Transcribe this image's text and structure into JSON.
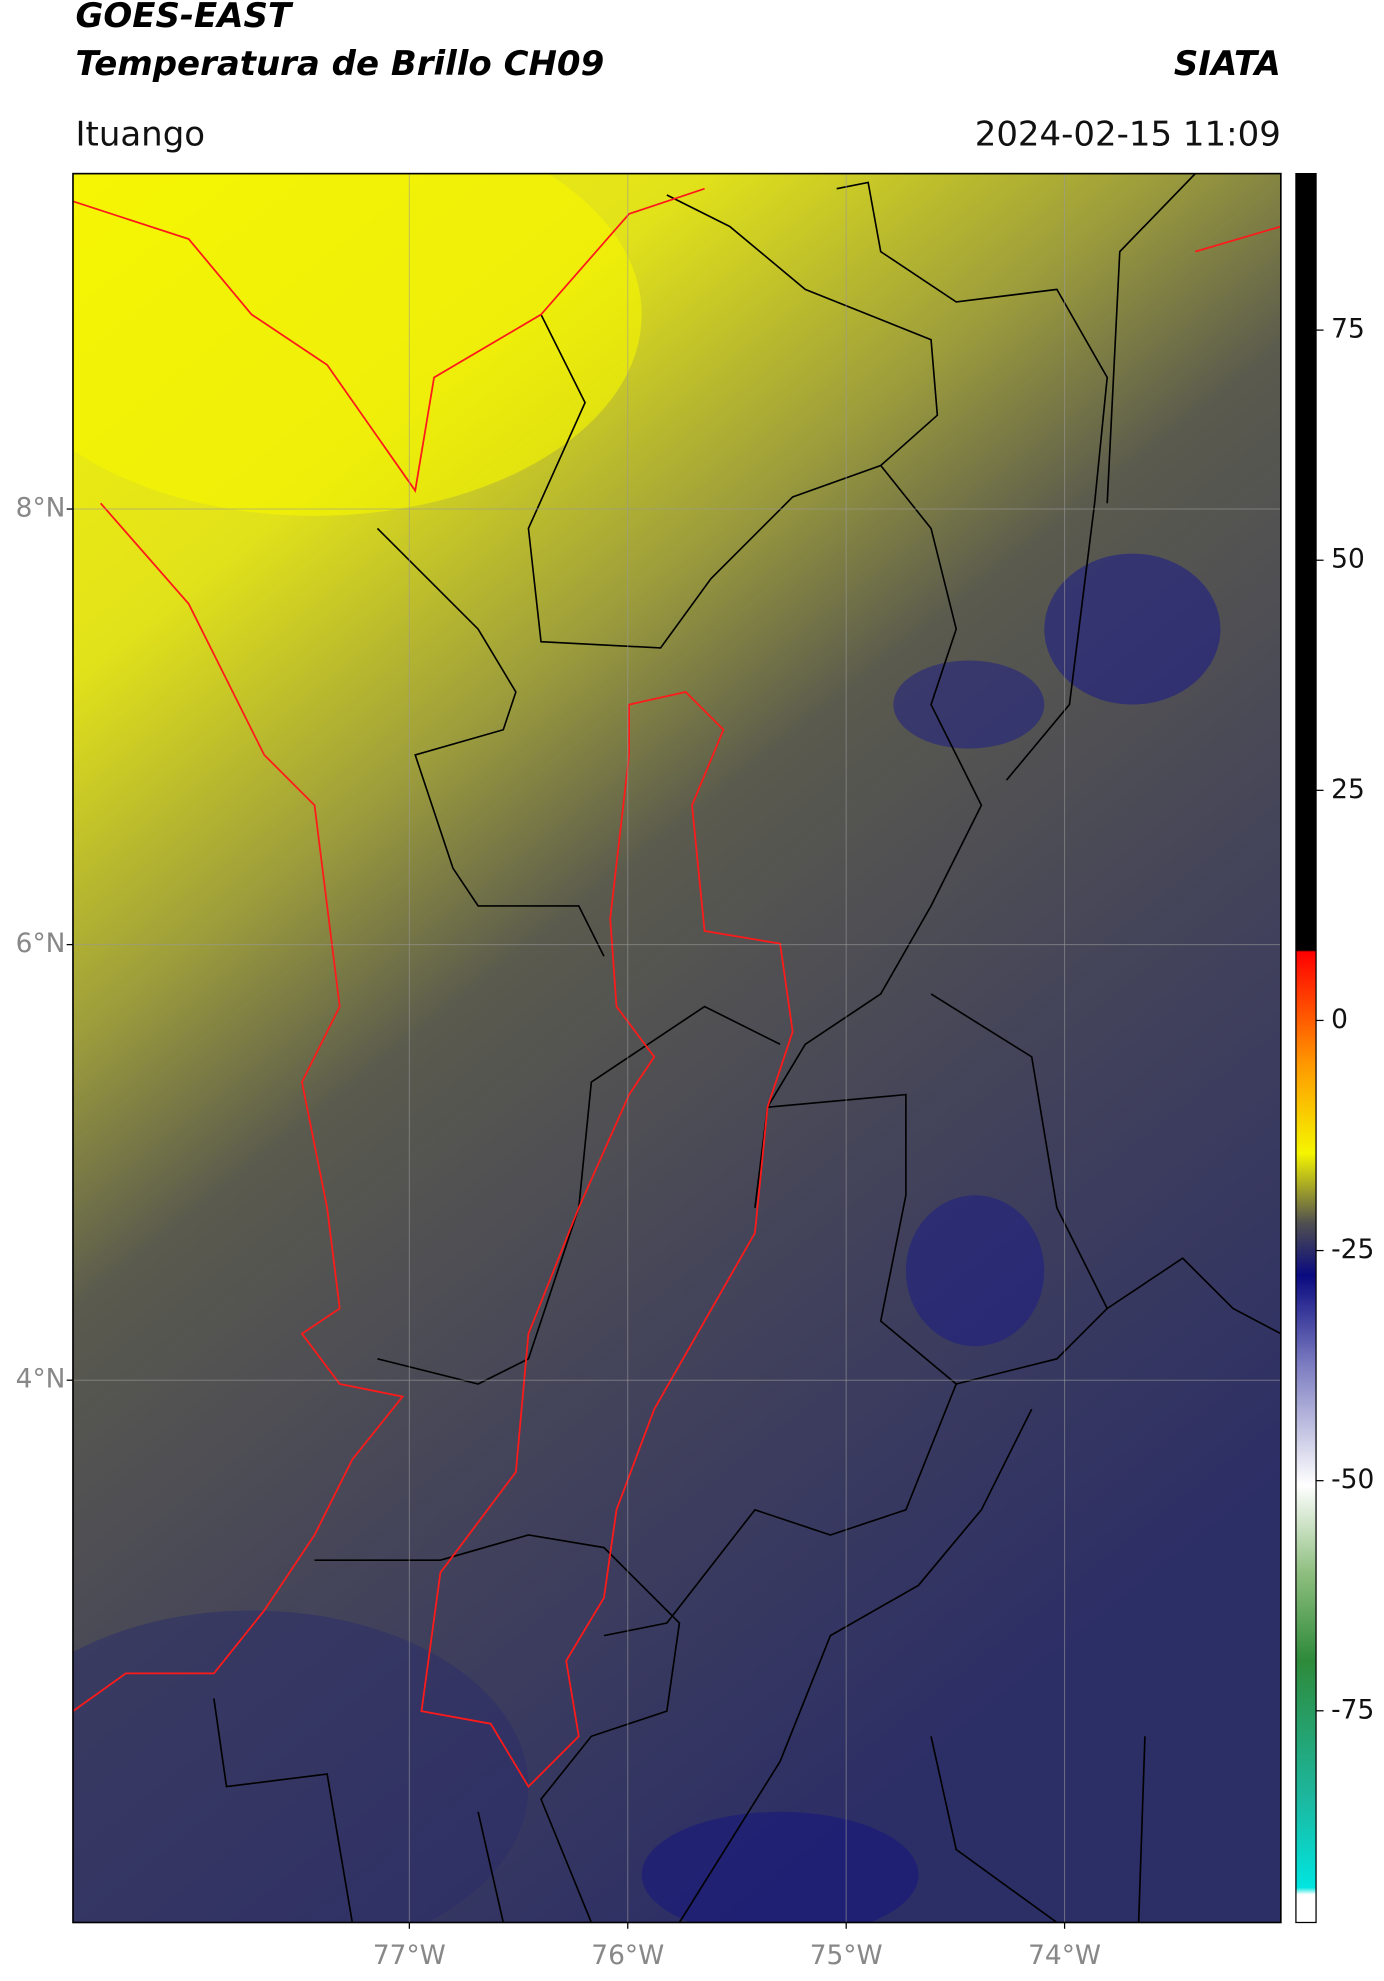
{
  "header": {
    "title": "GOES-EAST",
    "subtitle": "Temperatura de Brillo CH09",
    "agency": "SIATA",
    "region": "Ituango",
    "datetime": "2024-02-15 11:09"
  },
  "map": {
    "latlim": [
      1.51,
      9.54
    ],
    "lonlim": [
      -78.54,
      -73.01
    ],
    "latticks": [
      {
        "value": 8,
        "label": "8°N"
      },
      {
        "value": 6,
        "label": "6°N"
      },
      {
        "value": 4,
        "label": "4°N"
      }
    ],
    "lonticks": [
      {
        "value": -77,
        "label": "77°W"
      },
      {
        "value": -76,
        "label": "76°W"
      },
      {
        "value": -75,
        "label": "75°W"
      },
      {
        "value": -74,
        "label": "74°W"
      }
    ]
  },
  "colorbar": {
    "lim": [
      -98,
      92
    ],
    "ticks": [
      75,
      50,
      25,
      0,
      -25,
      -50,
      -75
    ]
  }
}
